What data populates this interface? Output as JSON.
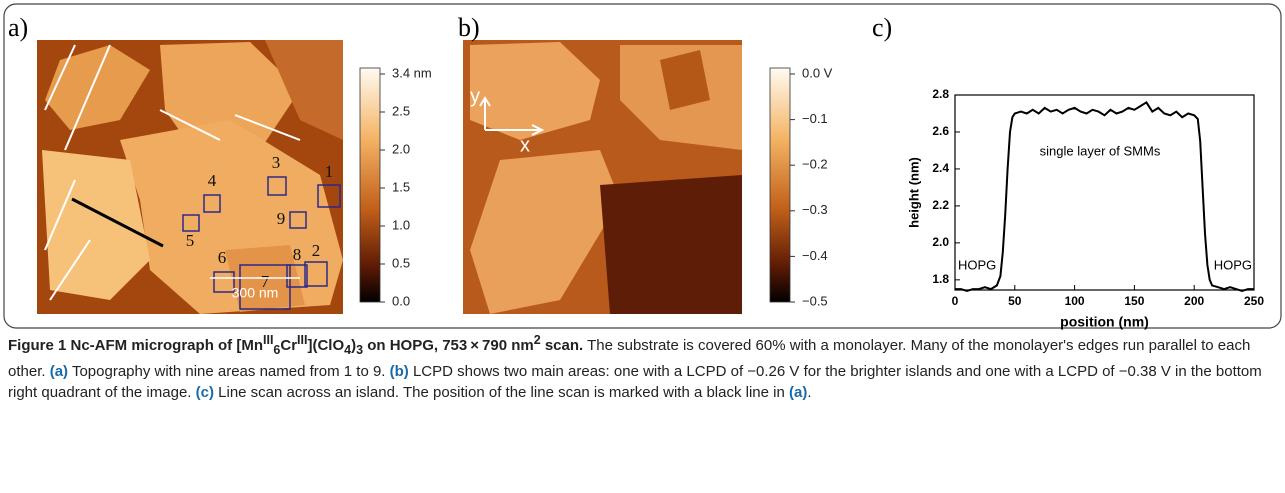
{
  "panels": {
    "a": {
      "label": "a)",
      "colorbar_ticks": [
        "3.4 nm",
        "2.5",
        "2.0",
        "1.5",
        "1.0",
        "0.5",
        "0.0"
      ],
      "scale_bar": "300 nm",
      "areas": [
        "1",
        "2",
        "3",
        "4",
        "5",
        "6",
        "7",
        "8",
        "9"
      ]
    },
    "b": {
      "label": "b)",
      "colorbar_ticks": [
        "0.0 V",
        "−0.1",
        "−0.2",
        "−0.3",
        "−0.4",
        "−0.5"
      ],
      "axes": [
        "x",
        "y"
      ]
    },
    "c": {
      "label": "c)",
      "chart_data": {
        "type": "line",
        "x_label": "position (nm)",
        "y_label": "height (nm)",
        "annotations": [
          "single layer of SMMs",
          "HOPG",
          "HOPG"
        ],
        "x": [
          0,
          5,
          10,
          15,
          20,
          25,
          30,
          35,
          38,
          40,
          42,
          44,
          46,
          48,
          50,
          55,
          60,
          65,
          70,
          75,
          80,
          85,
          90,
          95,
          100,
          105,
          110,
          115,
          120,
          125,
          130,
          135,
          140,
          145,
          150,
          155,
          160,
          165,
          170,
          175,
          180,
          185,
          190,
          195,
          200,
          203,
          205,
          207,
          209,
          211,
          213,
          215,
          220,
          225,
          230,
          235,
          240,
          245,
          250
        ],
        "series": [
          {
            "color": "#000000",
            "values": [
              1.75,
              1.75,
              1.74,
              1.75,
              1.75,
              1.76,
              1.75,
              1.77,
              1.82,
              1.95,
              2.15,
              2.4,
              2.6,
              2.68,
              2.7,
              2.71,
              2.7,
              2.72,
              2.7,
              2.73,
              2.71,
              2.72,
              2.7,
              2.72,
              2.73,
              2.71,
              2.7,
              2.72,
              2.71,
              2.69,
              2.72,
              2.7,
              2.71,
              2.73,
              2.72,
              2.74,
              2.76,
              2.71,
              2.73,
              2.7,
              2.69,
              2.71,
              2.68,
              2.7,
              2.69,
              2.67,
              2.55,
              2.3,
              2.05,
              1.88,
              1.8,
              1.77,
              1.76,
              1.75,
              1.76,
              1.75,
              1.74,
              1.75,
              1.75
            ]
          }
        ],
        "xlim": [
          0,
          250
        ],
        "ylim": [
          1.745,
          2.8
        ],
        "xticks": [
          0,
          50,
          100,
          150,
          200,
          250
        ],
        "yticks": [
          1.8,
          {
            "value": 2.0,
            "label": "2.0"
          },
          2.2,
          2.4,
          2.6,
          2.8
        ]
      }
    }
  },
  "caption": {
    "title": [
      "Figure 1 Nc-AFM micrograph of [Mn",
      "III",
      "6",
      "Cr",
      "III",
      "](ClO",
      "4",
      ")",
      "3",
      " on HOPG, 753 × 790 nm",
      "2",
      " scan."
    ],
    "body": [
      "The substrate is covered 60% with a monolayer. Many of the monolayer's edges run parallel to each other.",
      "(a)",
      "Topography with nine areas named from 1 to 9.",
      "(b)",
      "LCPD shows two main areas: one with a LCPD of −0.26 V for the brighter islands and one with a LCPD of −0.38 V in the bottom right quadrant of the image.",
      "(c)",
      "Line scan across an island. The position of the line scan is marked with a black line in",
      "(a)",
      "."
    ]
  }
}
